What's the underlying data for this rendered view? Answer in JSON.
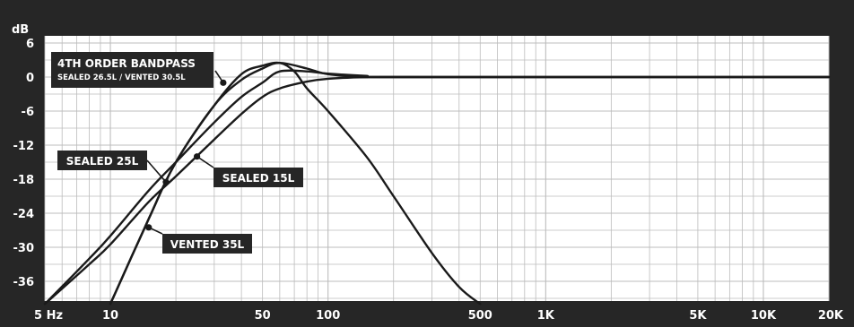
{
  "chart_data": {
    "type": "line",
    "x_scale": "log",
    "y_unit": "dB",
    "xlim": [
      5,
      20000
    ],
    "ylim": [
      -40,
      6
    ],
    "grid": true,
    "x_ticks": [
      {
        "value": 5,
        "label": "5 Hz"
      },
      {
        "value": 10,
        "label": "10"
      },
      {
        "value": 50,
        "label": "50"
      },
      {
        "value": 100,
        "label": "100"
      },
      {
        "value": 500,
        "label": "500"
      },
      {
        "value": 1000,
        "label": "1K"
      },
      {
        "value": 5000,
        "label": "5K"
      },
      {
        "value": 10000,
        "label": "10K"
      },
      {
        "value": 20000,
        "label": "20K"
      }
    ],
    "y_ticks": [
      {
        "value": 6,
        "label": "6"
      },
      {
        "value": 0,
        "label": "0"
      },
      {
        "value": -6,
        "label": "-6"
      },
      {
        "value": -12,
        "label": "-12"
      },
      {
        "value": -18,
        "label": "-18"
      },
      {
        "value": -24,
        "label": "-24"
      },
      {
        "value": -30,
        "label": "-30"
      },
      {
        "value": -36,
        "label": "-36"
      }
    ],
    "series": [
      {
        "name": "4TH ORDER BANDPASS",
        "subtitle": "SEALED 26.5L / VENTED 30.5L",
        "x": [
          10,
          15,
          20,
          30,
          40,
          50,
          60,
          70,
          80,
          100,
          150,
          200,
          300,
          400,
          500
        ],
        "y": [
          -40,
          -25,
          -15,
          -5,
          0.5,
          2,
          2.5,
          1,
          -2,
          -6,
          -14,
          -21,
          -31,
          -37,
          -40
        ]
      },
      {
        "name": "SEALED 25L",
        "x": [
          5,
          8,
          10,
          15,
          20,
          30,
          40,
          50,
          60,
          80,
          100,
          150,
          200,
          20000
        ],
        "y": [
          -40,
          -32,
          -28,
          -20,
          -15,
          -8,
          -3.5,
          -1,
          1,
          1,
          0.6,
          0.2,
          0,
          0
        ]
      },
      {
        "name": "SEALED 15L",
        "x": [
          5,
          8,
          10,
          15,
          20,
          30,
          40,
          50,
          60,
          80,
          100,
          150,
          200,
          20000
        ],
        "y": [
          -40,
          -33,
          -29.5,
          -22,
          -17.5,
          -11,
          -6.5,
          -3.5,
          -2,
          -0.8,
          -0.3,
          0,
          0,
          0
        ]
      },
      {
        "name": "VENTED 35L",
        "x": [
          10,
          15,
          20,
          30,
          40,
          50,
          60,
          80,
          100,
          150,
          200,
          20000
        ],
        "y": [
          -40,
          -25,
          -15,
          -5,
          -0.5,
          1.5,
          2.5,
          1.5,
          0.5,
          0,
          0,
          0
        ]
      }
    ],
    "callouts": [
      {
        "series": 0,
        "x": 33,
        "y": -1,
        "title": "4TH ORDER BANDPASS",
        "subtitle": "SEALED 26.5L / VENTED 30.5L"
      },
      {
        "series": 1,
        "x": 18,
        "y": -18.5,
        "title": "SEALED 25L"
      },
      {
        "series": 2,
        "x": 25,
        "y": -14,
        "title": "SEALED 15L"
      },
      {
        "series": 3,
        "x": 15,
        "y": -26.5,
        "title": "VENTED 35L"
      }
    ],
    "colors": {
      "background": "#262626",
      "plot_background": "#ffffff",
      "grid": "#bcbcbc",
      "line": "#1a1a1a",
      "label_background": "#262626",
      "label_text": "#ffffff"
    }
  }
}
